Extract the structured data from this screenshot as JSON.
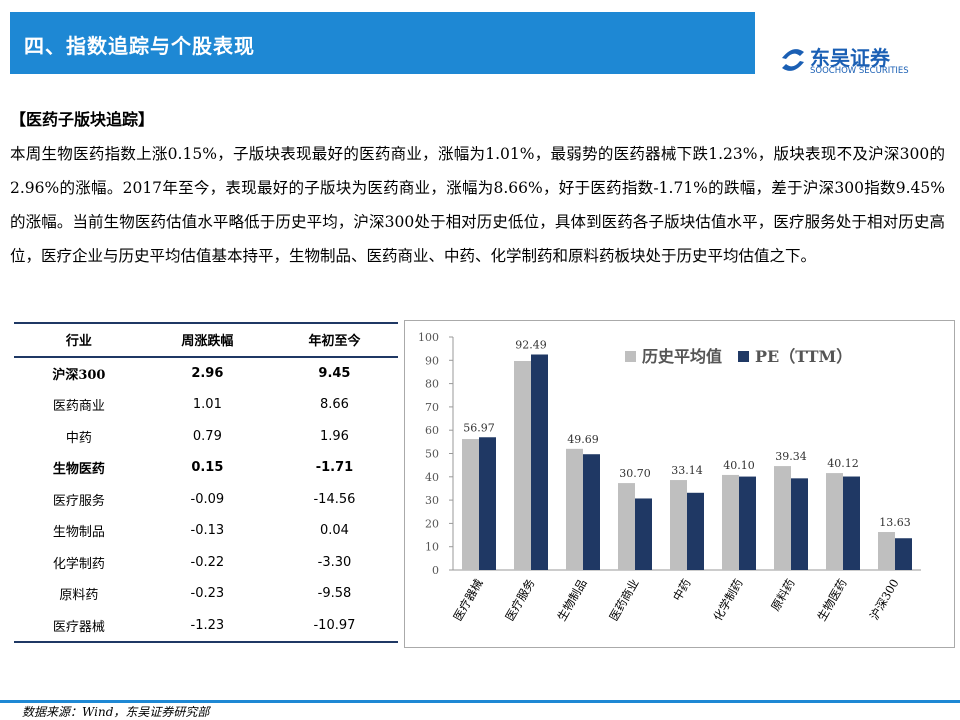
{
  "header": {
    "title": "四、指数追踪与个股表现",
    "logo_cn": "东吴证券",
    "logo_en": "SOOCHOW SECURITIES"
  },
  "section_title": "【医药子版块追踪】",
  "paragraph": "本周生物医药指数上涨0.15%，子版块表现最好的医药商业，涨幅为1.01%，最弱势的医药器械下跌1.23%，版块表现不及沪深300的2.96%的涨幅。2017年至今，表现最好的子版块为医药商业，涨幅为8.66%，好于医药指数-1.71%的跌幅，差于沪深300指数9.45%的涨幅。当前生物医药估值水平略低于历史平均，沪深300处于相对历史低位，具体到医药各子版块估值水平，医疗服务处于相对历史高位，医疗企业与历史平均估值基本持平，生物制品、医药商业、中药、化学制药和原料药板块处于历史平均估值之下。",
  "table": {
    "header": [
      "行业",
      "周涨跌幅",
      "年初至今"
    ],
    "rows": [
      [
        "沪深300",
        "2.96",
        "9.45"
      ],
      [
        "医药商业",
        "1.01",
        "8.66"
      ],
      [
        "中药",
        "0.79",
        "1.96"
      ],
      [
        "生物医药",
        "0.15",
        "-1.71"
      ],
      [
        "医疗服务",
        "-0.09",
        "-14.56"
      ],
      [
        "生物制品",
        "-0.13",
        "0.04"
      ],
      [
        "化学制药",
        "-0.22",
        "-3.30"
      ],
      [
        "原料药",
        "-0.23",
        "-9.58"
      ],
      [
        "医疗器械",
        "-1.23",
        "-10.97"
      ]
    ],
    "bold_rows": [
      0,
      3
    ]
  },
  "chart_data": {
    "type": "bar",
    "categories": [
      "医疗器械",
      "医疗服务",
      "生物制品",
      "医药商业",
      "中药",
      "化学制药",
      "原料药",
      "生物医药",
      "沪深300"
    ],
    "series": [
      {
        "name": "历史平均值",
        "color": "#bfbfbf",
        "values": [
          56.2,
          89.7,
          52,
          37.3,
          38.6,
          40.8,
          44.6,
          41.6,
          16.3
        ]
      },
      {
        "name": "PE（TTM）",
        "color": "#1f3864",
        "values": [
          56.97,
          92.49,
          49.69,
          30.7,
          33.14,
          40.1,
          39.34,
          40.12,
          13.63
        ],
        "value_labels": [
          "56.97",
          "92.49",
          "49.69",
          "30.70",
          "33.14",
          "40.10",
          "39.34",
          "40.12",
          "13.63"
        ]
      }
    ],
    "ylim": [
      0,
      100
    ],
    "yticks": [
      0,
      10,
      20,
      30,
      40,
      50,
      60,
      70,
      80,
      90,
      100
    ],
    "grid": false,
    "legend": "upper right"
  },
  "footer": "数据来源：Wind，东吴证券研究部"
}
